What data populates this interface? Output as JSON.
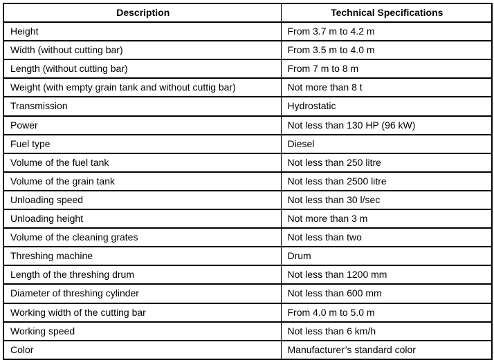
{
  "table": {
    "headers": [
      "Description",
      "Technical Specifications"
    ],
    "rows": [
      {
        "description": "Height",
        "specification": "From 3.7 m to 4.2 m"
      },
      {
        "description": "Width (without cutting bar)",
        "specification": "From 3.5 m to 4.0 m"
      },
      {
        "description": "Length (without cutting bar)",
        "specification": "From 7 m to 8 m"
      },
      {
        "description": "Weight (with empty grain tank and without cuttig bar)",
        "specification": "Not more than 8 t"
      },
      {
        "description": "Transmission",
        "specification": "Hydrostatic"
      },
      {
        "description": "Power",
        "specification": "Not less than 130 HP (96 kW)"
      },
      {
        "description": "Fuel type",
        "specification": "Diesel"
      },
      {
        "description": "Volume of the fuel tank",
        "specification": "Not less than 250 litre"
      },
      {
        "description": "Volume of the grain tank",
        "specification": "Not less than 2500 litre"
      },
      {
        "description": "Unloading speed",
        "specification": "Not less than 30 l/sec"
      },
      {
        "description": "Unloading height",
        "specification": "Not more than 3 m"
      },
      {
        "description": "Volume of the cleaning grates",
        "specification": "Not less than two"
      },
      {
        "description": "Threshing machine",
        "specification": "Drum"
      },
      {
        "description": "Length of the threshing drum",
        "specification": "Not less than 1200 mm"
      },
      {
        "description": "Diameter of threshing cylinder",
        "specification": "Not less than 600 mm"
      },
      {
        "description": "Working width of the cutting bar",
        "specification": "From 4.0 m to 5.0 m"
      },
      {
        "description": "Working speed",
        "specification": "Not less than 6 km/h"
      },
      {
        "description": "Color",
        "specification": "Manufacturer’s standard color"
      }
    ],
    "colors": {
      "border": "#000000",
      "text": "#000000",
      "background": "#ffffff"
    }
  }
}
